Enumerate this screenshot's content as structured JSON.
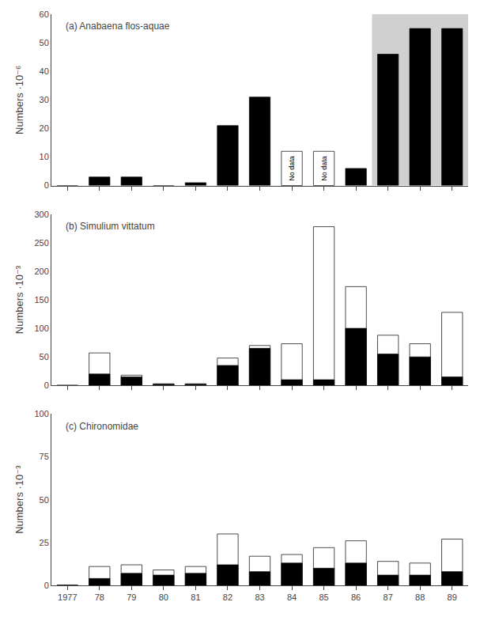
{
  "chart_data": [
    {
      "type": "bar",
      "panel": "(a)",
      "title": "Anabaena flos-aquae",
      "ylabel": "Numbers ·10⁻⁶",
      "categories": [
        "1977",
        "78",
        "79",
        "80",
        "81",
        "82",
        "83",
        "84",
        "85",
        "86",
        "87",
        "88",
        "89"
      ],
      "series": [
        {
          "color": "black",
          "values": [
            0,
            3,
            3,
            0,
            1,
            21,
            31,
            0,
            0,
            6,
            46,
            55,
            55
          ]
        },
        {
          "color": "white",
          "values": [
            null,
            null,
            null,
            null,
            null,
            null,
            null,
            12,
            12,
            null,
            null,
            null,
            null
          ],
          "value_labels": [
            null,
            null,
            null,
            null,
            null,
            null,
            null,
            "No data",
            "No data",
            null,
            null,
            null,
            null
          ],
          "data_labels": true
        }
      ],
      "highlight": {
        "start": "87",
        "color": "#d0d0d0"
      },
      "ylim": [
        0,
        60
      ],
      "yticks": [
        0,
        10,
        20,
        30,
        40,
        50,
        60
      ],
      "grid": false,
      "tick_labels": "y"
    },
    {
      "type": "bar",
      "panel": "(b)",
      "title": "Simulium vittatum",
      "ylabel": "Numbers ·10⁻³",
      "categories": [
        "1977",
        "78",
        "79",
        "80",
        "81",
        "82",
        "83",
        "84",
        "85",
        "86",
        "87",
        "88",
        "89"
      ],
      "series": [
        {
          "color": "white",
          "values": [
            0,
            57,
            18,
            3,
            3,
            48,
            70,
            73,
            278,
            173,
            88,
            73,
            128
          ]
        },
        {
          "color": "black",
          "values": [
            0,
            20,
            15,
            2,
            2,
            35,
            65,
            10,
            10,
            100,
            55,
            50,
            15
          ]
        }
      ],
      "ylim": [
        0,
        300
      ],
      "yticks": [
        0,
        50,
        100,
        150,
        200,
        250,
        300
      ],
      "grid": false,
      "tick_labels": "y"
    },
    {
      "type": "bar",
      "panel": "(c)",
      "title": "Chironomidae",
      "ylabel": "Numbers ·10⁻³",
      "categories": [
        "1977",
        "78",
        "79",
        "80",
        "81",
        "82",
        "83",
        "84",
        "85",
        "86",
        "87",
        "88",
        "89"
      ],
      "series": [
        {
          "color": "white",
          "values": [
            0,
            11,
            12,
            9,
            11,
            30,
            17,
            18,
            22,
            26,
            14,
            13,
            27
          ]
        },
        {
          "color": "black",
          "values": [
            0,
            4,
            7,
            6,
            7,
            12,
            8,
            13,
            10,
            13,
            6,
            6,
            8
          ]
        }
      ],
      "ylim": [
        0,
        100
      ],
      "yticks": [
        0,
        25,
        50,
        75,
        100
      ],
      "grid": false,
      "tick_labels": true
    }
  ]
}
